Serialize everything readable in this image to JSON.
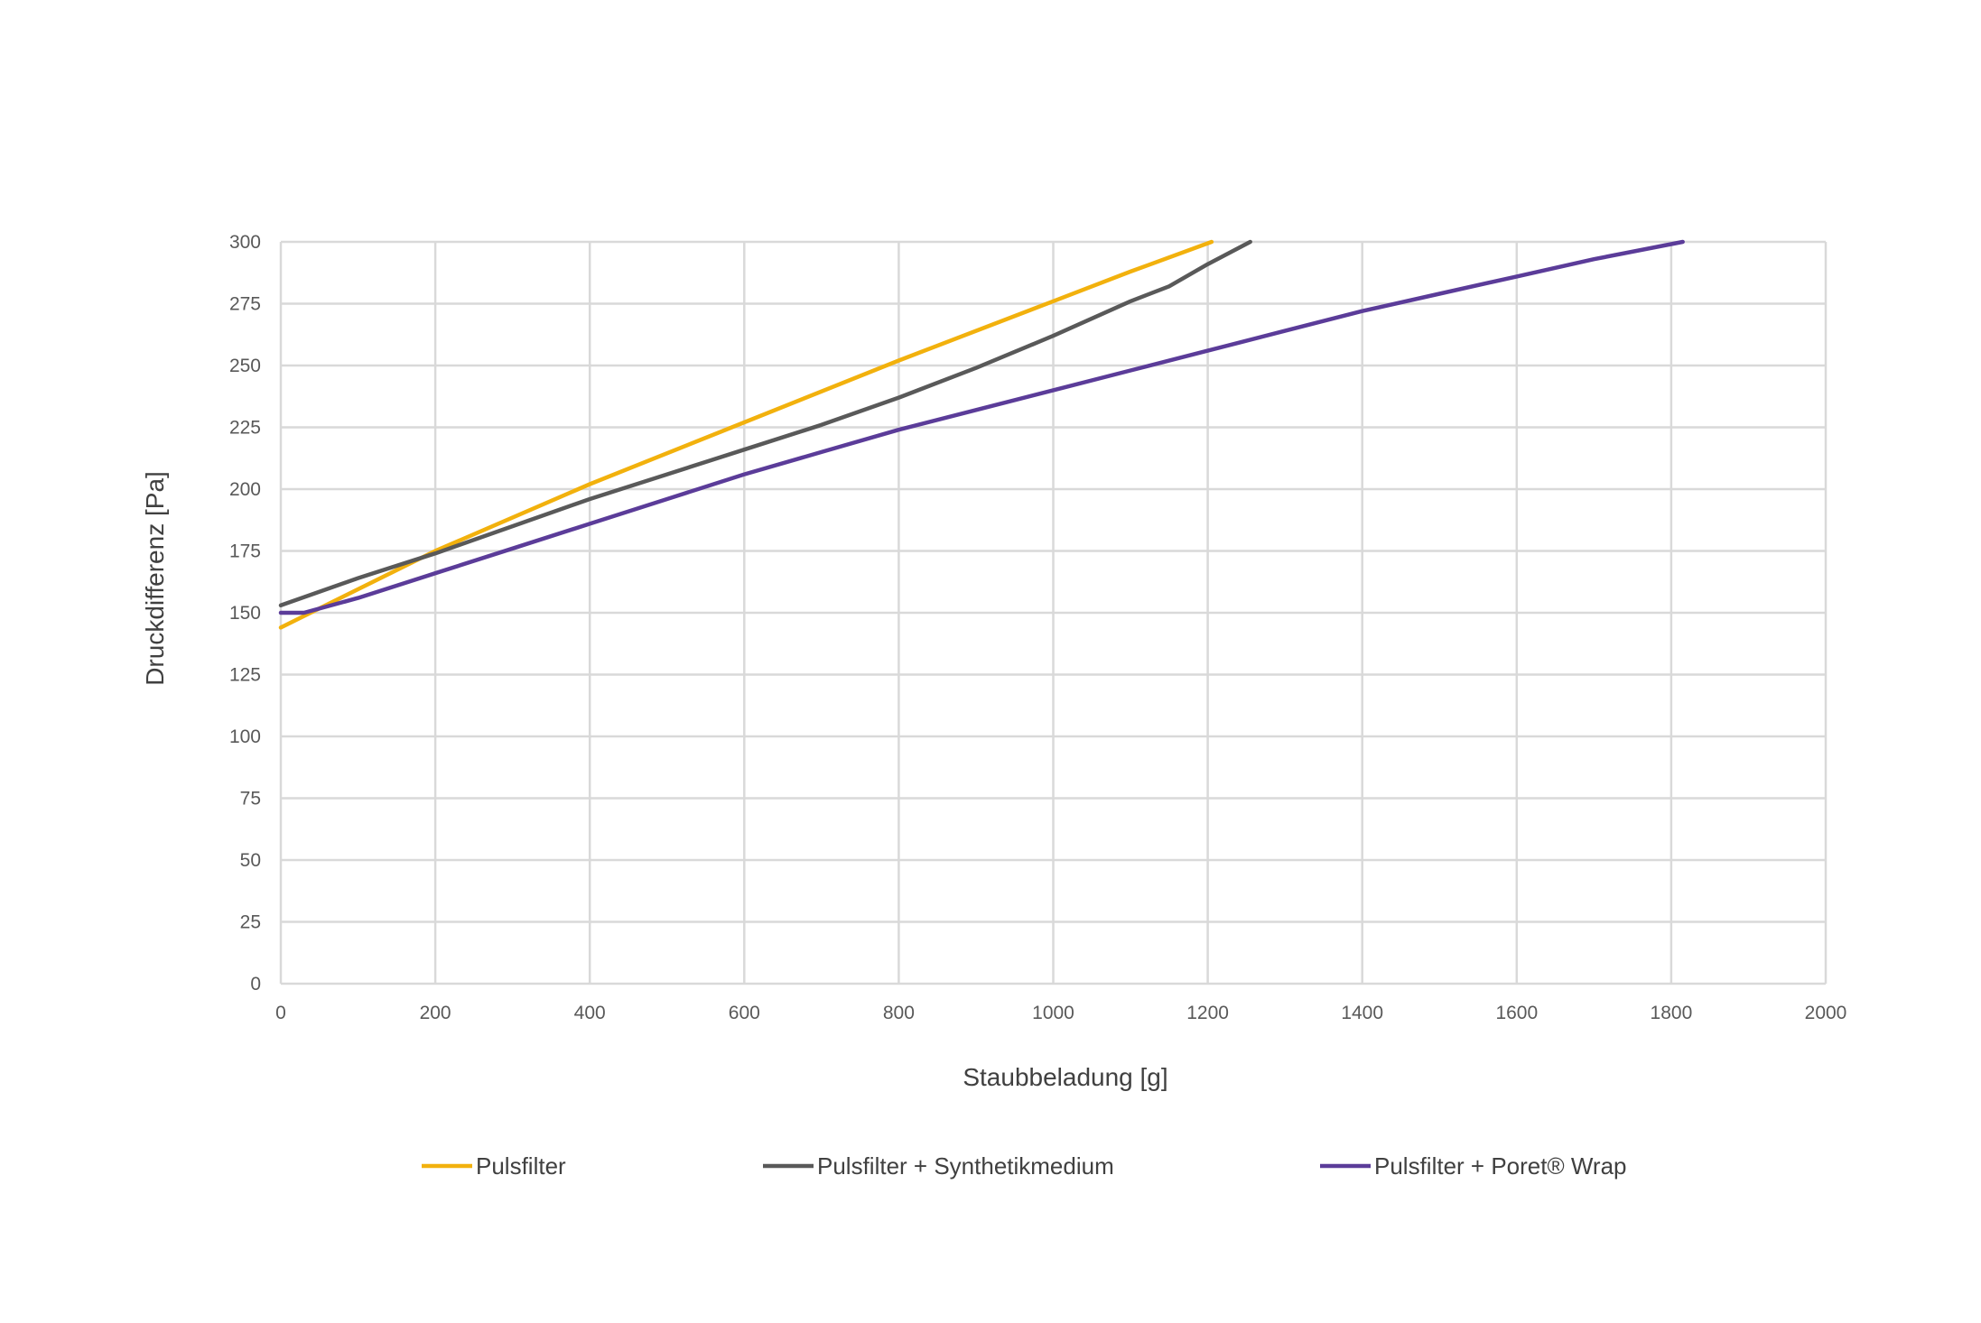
{
  "chart_data": {
    "type": "line",
    "title": "",
    "xlabel": "Staubbeladung [g]",
    "ylabel": "Druckdifferenz [Pa]",
    "xlim": [
      0,
      2000
    ],
    "ylim": [
      0,
      300
    ],
    "xticks": [
      "0",
      "200",
      "400",
      "600",
      "800",
      "1000",
      "1200",
      "1400",
      "1600",
      "1800",
      "2000"
    ],
    "yticks": [
      "0",
      "25",
      "50",
      "75",
      "100",
      "125",
      "150",
      "175",
      "200",
      "225",
      "250",
      "275",
      "300"
    ],
    "grid": true,
    "legend_position": "bottom",
    "series": [
      {
        "name": "Pulsfilter",
        "color": "#F2B10D",
        "points": [
          [
            0,
            144
          ],
          [
            200,
            175
          ],
          [
            400,
            202
          ],
          [
            600,
            227
          ],
          [
            800,
            252
          ],
          [
            1000,
            276
          ],
          [
            1100,
            288
          ],
          [
            1205,
            300
          ]
        ]
      },
      {
        "name": "Pulsfilter + Synthetikmedium",
        "color": "#595959",
        "points": [
          [
            0,
            153
          ],
          [
            100,
            164
          ],
          [
            200,
            174
          ],
          [
            300,
            185
          ],
          [
            400,
            196
          ],
          [
            500,
            206
          ],
          [
            600,
            216
          ],
          [
            700,
            226
          ],
          [
            800,
            237
          ],
          [
            900,
            249
          ],
          [
            1000,
            262
          ],
          [
            1100,
            276
          ],
          [
            1150,
            282
          ],
          [
            1200,
            291
          ],
          [
            1255,
            300
          ]
        ]
      },
      {
        "name": "Pulsfilter + Poret® Wrap",
        "color": "#5B3C99",
        "points": [
          [
            0,
            150
          ],
          [
            30,
            150
          ],
          [
            100,
            156
          ],
          [
            200,
            166
          ],
          [
            300,
            176
          ],
          [
            400,
            186
          ],
          [
            500,
            196
          ],
          [
            600,
            206
          ],
          [
            700,
            215
          ],
          [
            800,
            224
          ],
          [
            900,
            232
          ],
          [
            1000,
            240
          ],
          [
            1100,
            248
          ],
          [
            1200,
            256
          ],
          [
            1300,
            264
          ],
          [
            1400,
            272
          ],
          [
            1500,
            279
          ],
          [
            1600,
            286
          ],
          [
            1700,
            293
          ],
          [
            1815,
            300
          ]
        ]
      }
    ]
  }
}
